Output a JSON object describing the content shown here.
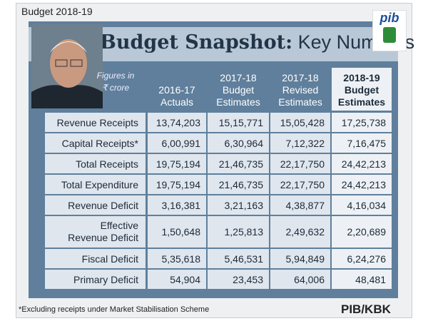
{
  "header": {
    "label": "Budget 2018-19",
    "title_bold": "Budget Snapshot:",
    "title_light": "Key Numbers",
    "logo": "pib"
  },
  "table": {
    "note": [
      "Figures in",
      "₹ crore"
    ],
    "columns": [
      [
        "2016-17",
        "Actuals"
      ],
      [
        "2017-18",
        "Budget",
        "Estimates"
      ],
      [
        "2017-18",
        "Revised",
        "Estimates"
      ],
      [
        "2018-19",
        "Budget",
        "Estimates"
      ]
    ],
    "rows": [
      [
        "Revenue Receipts",
        "13,74,203",
        "15,15,771",
        "15,05,428",
        "17,25,738"
      ],
      [
        "Capital Receipts*",
        "6,00,991",
        "6,30,964",
        "7,12,322",
        "7,16,475"
      ],
      [
        "Total Receipts",
        "19,75,194",
        "21,46,735",
        "22,17,750",
        "24,42,213"
      ],
      [
        "Total Expenditure",
        "19,75,194",
        "21,46,735",
        "22,17,750",
        "24,42,213"
      ],
      [
        "Revenue Deficit",
        "3,16,381",
        "3,21,163",
        "4,38,877",
        "4,16,034"
      ],
      [
        "Effective Revenue Deficit",
        "1,50,648",
        "1,25,813",
        "2,49,632",
        "2,20,689"
      ],
      [
        "Fiscal Deficit",
        "5,35,618",
        "5,46,531",
        "5,94,849",
        "6,24,276"
      ],
      [
        "Primary Deficit",
        "54,904",
        "23,453",
        "64,006",
        "48,481"
      ]
    ]
  },
  "footer": {
    "footnote": "*Excluding receipts under Market Stabilisation Scheme",
    "credit": "PIB/KBK"
  }
}
